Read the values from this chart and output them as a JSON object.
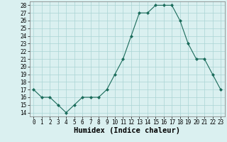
{
  "x": [
    0,
    1,
    2,
    3,
    4,
    5,
    6,
    7,
    8,
    9,
    10,
    11,
    12,
    13,
    14,
    15,
    16,
    17,
    18,
    19,
    20,
    21,
    22,
    23
  ],
  "y": [
    17,
    16,
    16,
    15,
    14,
    15,
    16,
    16,
    16,
    17,
    19,
    21,
    24,
    27,
    27,
    28,
    28,
    28,
    26,
    23,
    21,
    21,
    19,
    17
  ],
  "xlabel": "Humidex (Indice chaleur)",
  "ylim": [
    13.5,
    28.5
  ],
  "yticks": [
    14,
    15,
    16,
    17,
    18,
    19,
    20,
    21,
    22,
    23,
    24,
    25,
    26,
    27,
    28
  ],
  "xlim": [
    -0.5,
    23.5
  ],
  "xticks": [
    0,
    1,
    2,
    3,
    4,
    5,
    6,
    7,
    8,
    9,
    10,
    11,
    12,
    13,
    14,
    15,
    16,
    17,
    18,
    19,
    20,
    21,
    22,
    23
  ],
  "line_color": "#1a6b5a",
  "marker": "D",
  "marker_size": 2.0,
  "bg_color": "#daf0f0",
  "grid_color": "#aad4d4",
  "axis_fontsize": 7.0,
  "tick_fontsize": 5.5,
  "xlabel_fontsize": 7.5
}
